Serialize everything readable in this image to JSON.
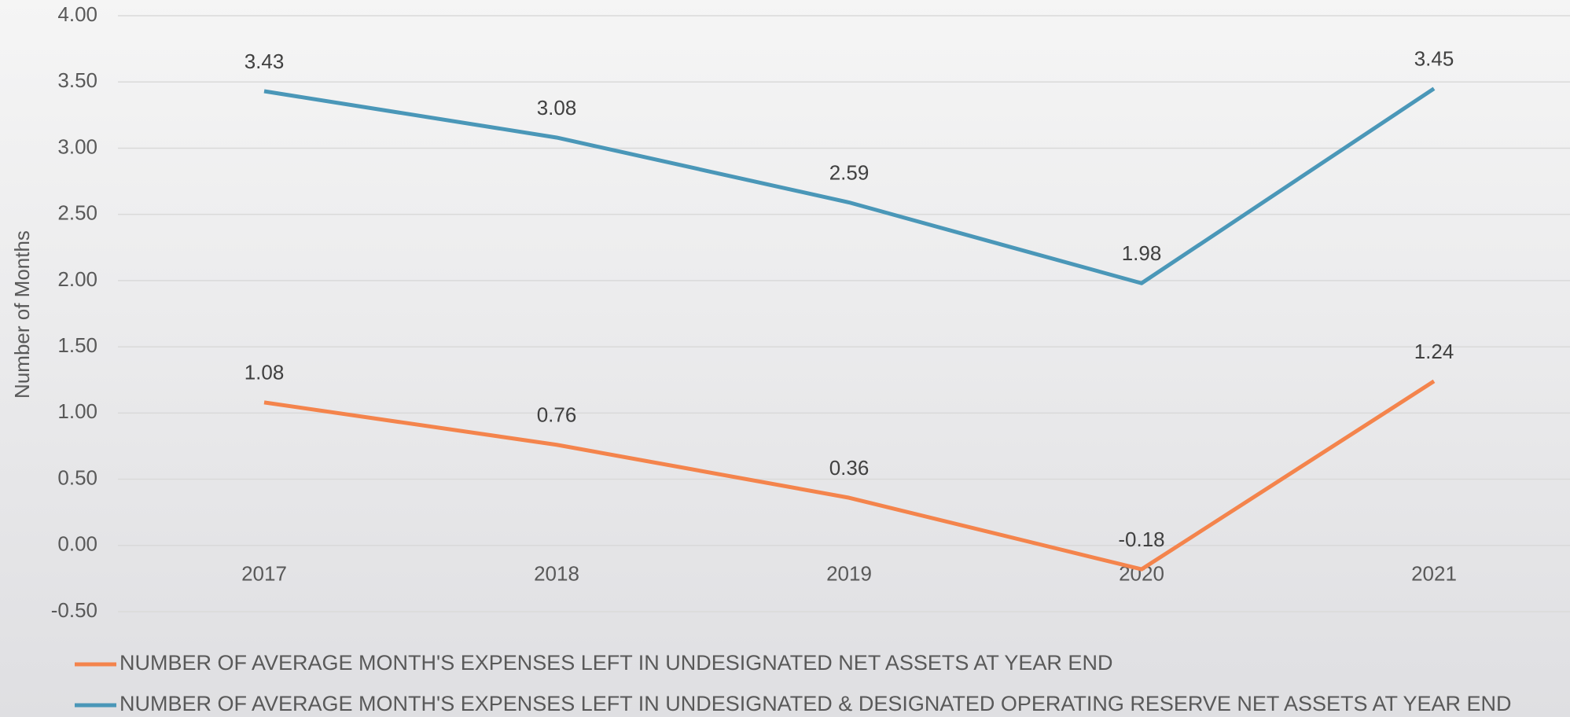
{
  "chart_data": {
    "type": "line",
    "y_label": "Number of Months",
    "categories": [
      "2017",
      "2018",
      "2019",
      "2020",
      "2021"
    ],
    "series": [
      {
        "name": "NUMBER OF AVERAGE MONTH'S EXPENSES LEFT IN UNDESIGNATED NET ASSETS AT YEAR END",
        "color": "#f4844c",
        "values": [
          1.08,
          0.76,
          0.36,
          -0.18,
          1.24
        ]
      },
      {
        "name": "NUMBER OF AVERAGE MONTH'S EXPENSES LEFT IN UNDESIGNATED & DESIGNATED OPERATING RESERVE NET ASSETS AT YEAR END",
        "color": "#4a97b8",
        "values": [
          3.43,
          3.08,
          2.59,
          1.98,
          3.45
        ]
      }
    ],
    "ylim": [
      -0.5,
      4
    ],
    "yticks": [
      {
        "value": -0.5,
        "label": "-0.50"
      },
      {
        "value": 0,
        "label": "0.00"
      },
      {
        "value": 0.5,
        "label": "0.50"
      },
      {
        "value": 1,
        "label": "1.00"
      },
      {
        "value": 1.5,
        "label": "1.50"
      },
      {
        "value": 2,
        "label": "2.00"
      },
      {
        "value": 2.5,
        "label": "2.50"
      },
      {
        "value": 3,
        "label": "3.00"
      },
      {
        "value": 3.5,
        "label": "3.50"
      },
      {
        "value": 4,
        "label": "4.00"
      }
    ],
    "grid": true,
    "legend": "bottom"
  }
}
